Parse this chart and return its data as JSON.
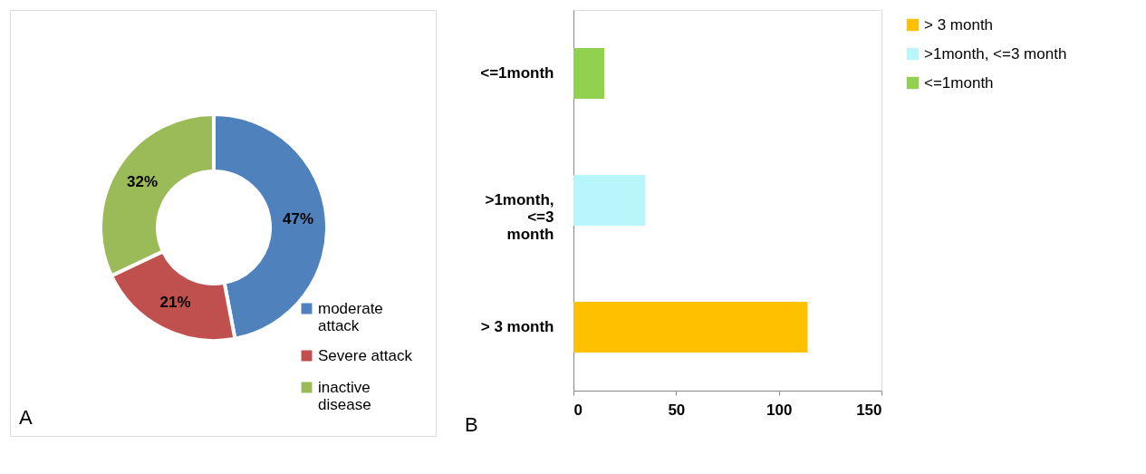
{
  "chart_data": [
    {
      "type": "donut",
      "categories": [
        "moderate attack",
        "Severe attack",
        "inactive disease"
      ],
      "values": [
        47,
        21,
        32
      ],
      "colors": [
        "#4f81bd",
        "#c0504d",
        "#9bbb59"
      ],
      "value_labels": [
        "47%",
        "21%",
        "32%"
      ],
      "legend": "bottom right",
      "annotations": [
        "A"
      ]
    },
    {
      "type": "bar",
      "orientation": "horizontal",
      "categories": [
        "<=1month",
        ">1month, <=3 month",
        "> 3 month"
      ],
      "series": [
        {
          "name": "> 3 month",
          "color": "#ffc000",
          "values": [
            null,
            null,
            114
          ]
        },
        {
          "name": ">1month, <=3 month",
          "color": "#b7f7fb",
          "values": [
            null,
            35,
            null
          ]
        },
        {
          "name": "<=1month",
          "color": "#92d050",
          "values": [
            15,
            null,
            null
          ]
        }
      ],
      "xlim": [
        0,
        150
      ],
      "xticks": [
        0,
        50,
        100,
        150
      ],
      "grid": false,
      "legend": "right",
      "annotations": [
        "B"
      ]
    }
  ]
}
